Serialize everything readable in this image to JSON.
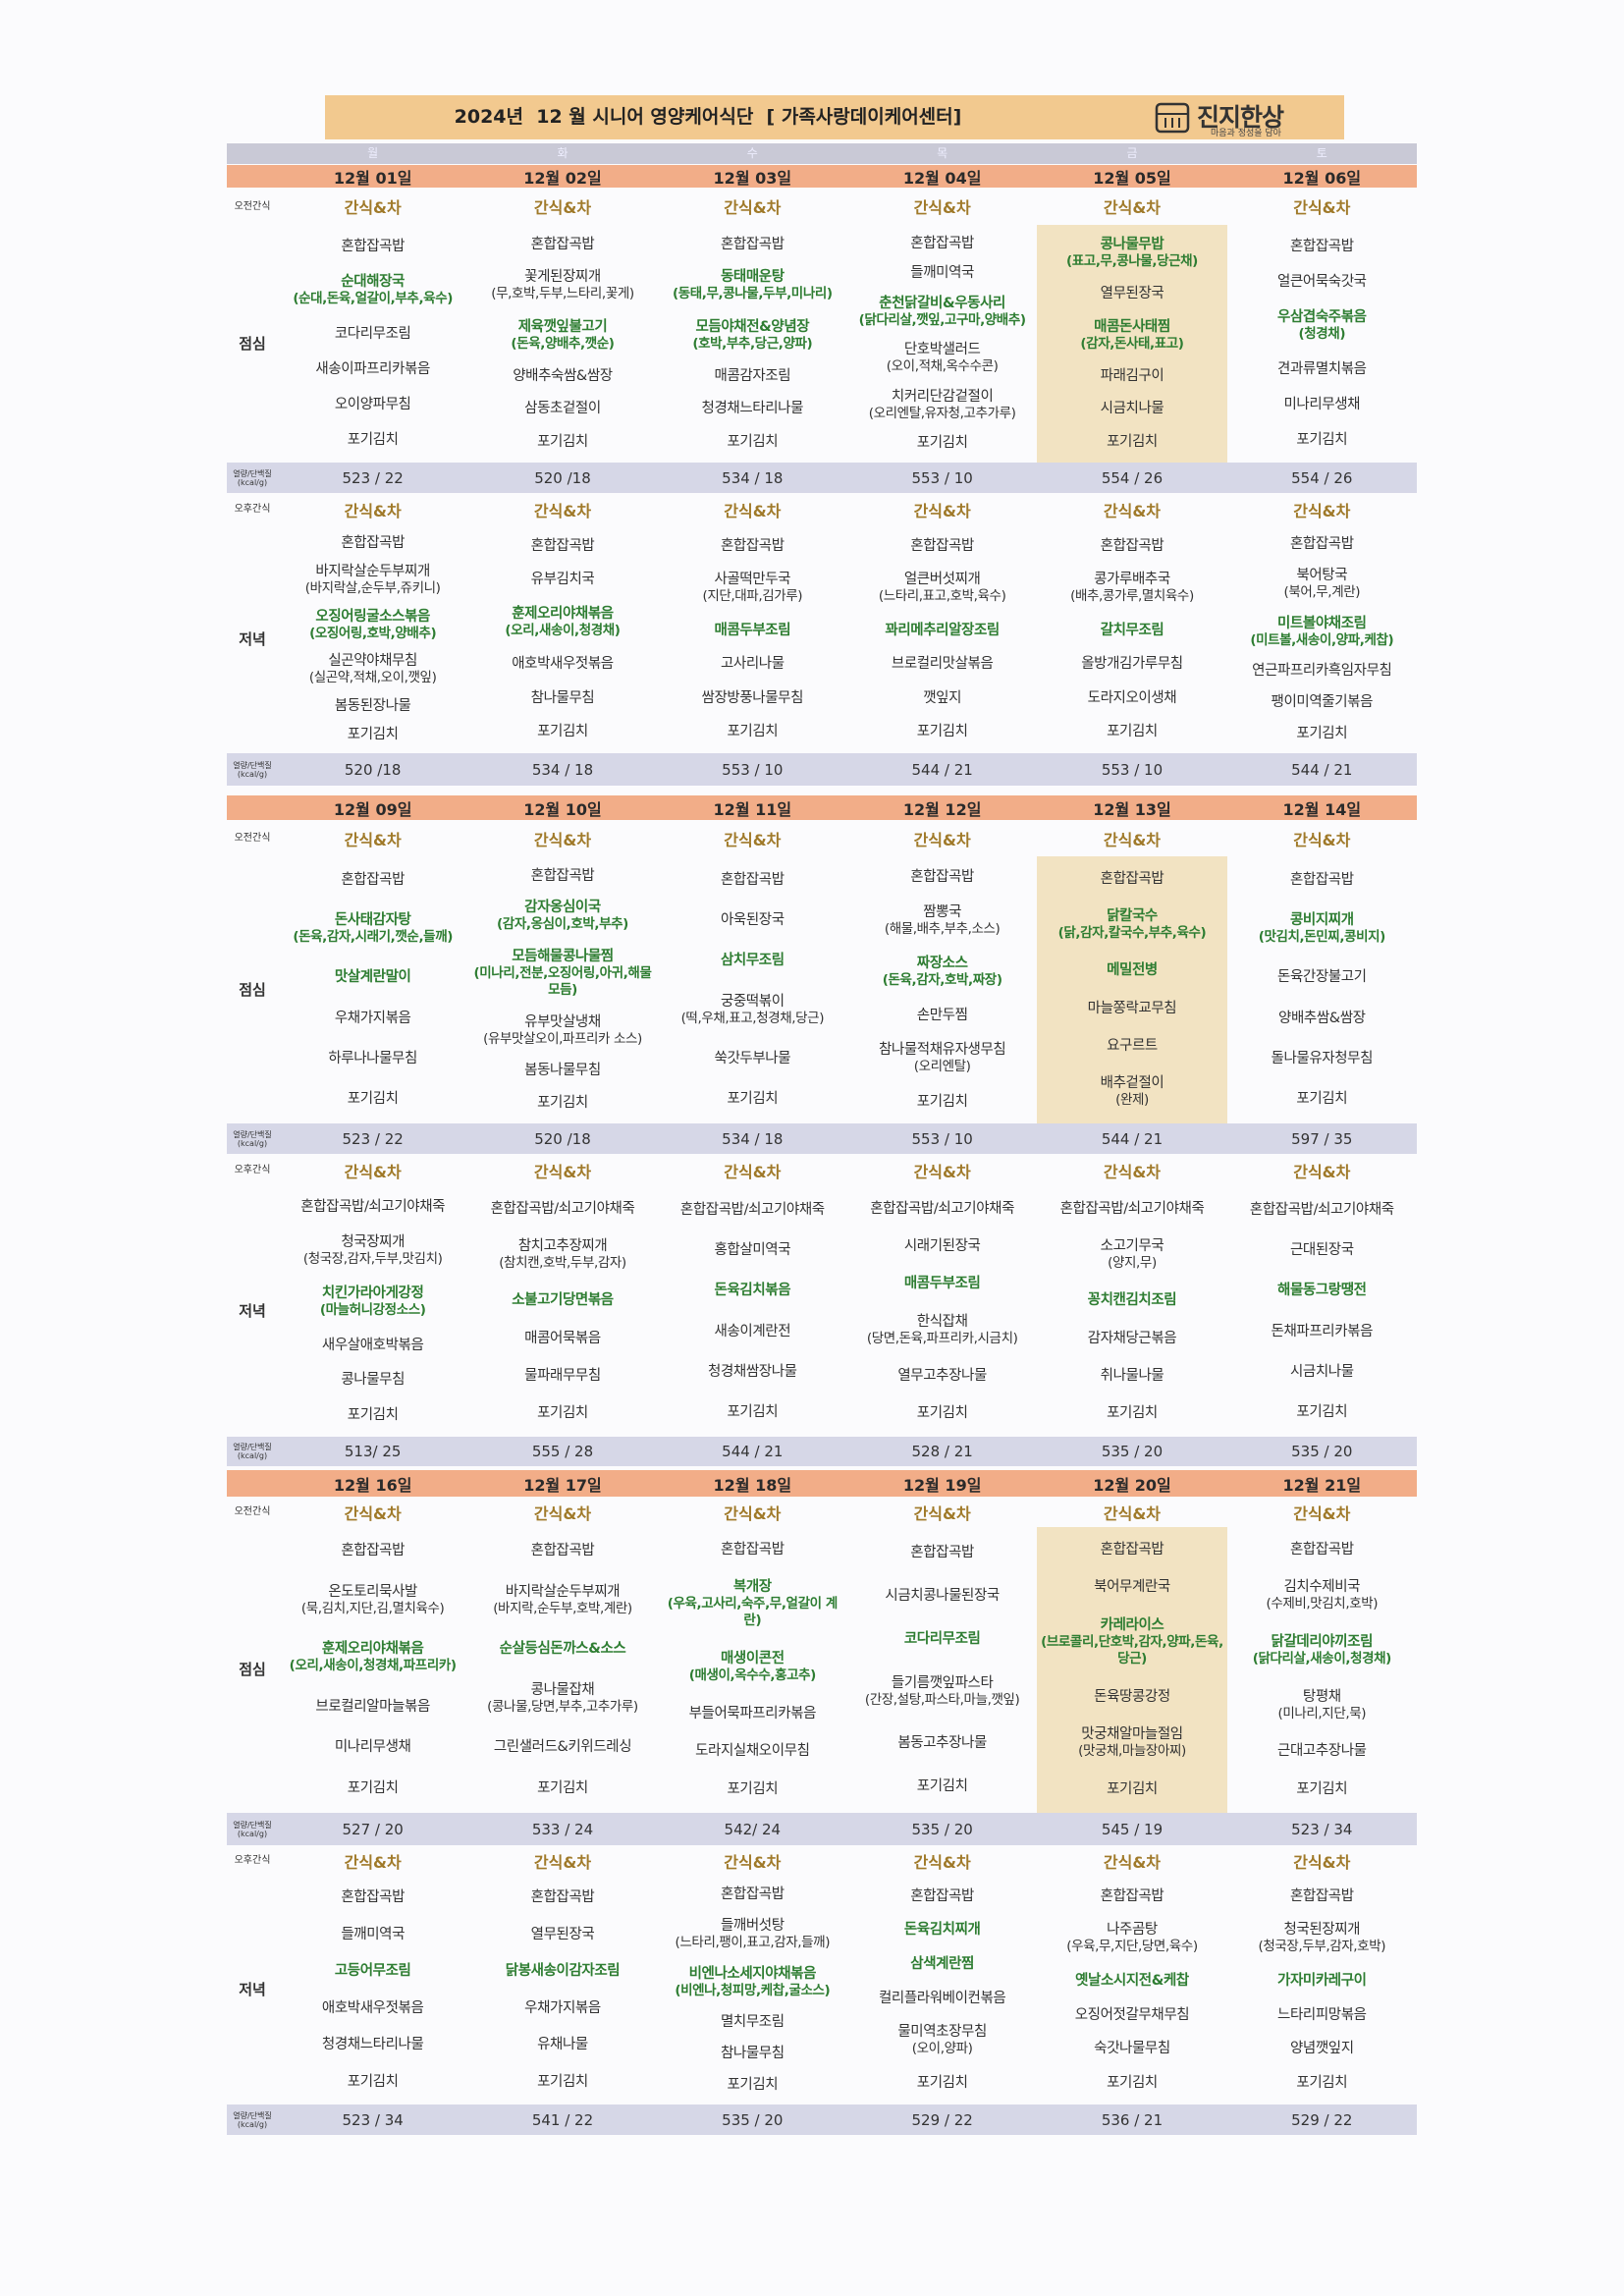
{
  "header": {
    "title": "2024년  12 월 시니어 영양케어식단  [ 가족사랑데이케어센터]",
    "logo": "진지한상",
    "logo_sub": "마음과 정성을 담아"
  },
  "weekdays": [
    "월",
    "화",
    "수",
    "목",
    "금",
    "토"
  ],
  "row_labels": {
    "morning_snack": "오전간식",
    "lunch": "점심",
    "nutrition": "열량/단백질",
    "nutrition_unit": "(kcal/g)",
    "afternoon_snack": "오후간식",
    "dinner": "저녁"
  },
  "weeks": [
    {
      "dates": [
        "12월 01일",
        "12월 02일",
        "12월 03일",
        "12월 04일",
        "12월 05일",
        "12월 06일"
      ],
      "morning_snack": [
        "간식&차",
        "간식&차",
        "간식&차",
        "간식&차",
        "간식&차",
        "간식&차"
      ],
      "lunch": [
        [
          "혼합잡곡밥",
          {
            "text": "순대해장국(순대,돈육,얼갈이,부추,육수)",
            "color": "#2e7d32"
          },
          "코다리무조림",
          "새송이파프리카볶음",
          "오이양파무침",
          "포기김치"
        ],
        [
          "혼합잡곡밥",
          "꽃게된장찌개(무,호박,두부,느타리,꽃게)",
          {
            "text": "제육깻잎불고기(돈육,양배추,깻순)",
            "color": "#2e7d32"
          },
          "양배추숙쌈&쌈장",
          "삼동초겉절이",
          "포기김치"
        ],
        [
          "혼합잡곡밥",
          {
            "text": "동태매운탕(동태,무,콩나물,두부,미나리)",
            "color": "#2e7d32"
          },
          {
            "text": "모듬야채전&양념장(호박,부추,당근,양파)",
            "color": "#2e7d32"
          },
          "매콤감자조림",
          "청경채느타리나물",
          "포기김치"
        ],
        [
          "혼합잡곡밥",
          "들깨미역국",
          {
            "text": "춘천닭갈비&우동사리(닭다리살,깻잎,고구마,양배추)",
            "color": "#2e7d32"
          },
          "단호박샐러드(오이,적채,옥수수콘)",
          "치커리단감겉절이(오리엔탈,유자청,고추가루)",
          "포기김치"
        ],
        [
          {
            "text": "콩나물무밥(표고,무,콩나물,당근채)",
            "color": "#2e7d32"
          },
          "열무된장국",
          {
            "text": "매콤돈사태찜(감자,돈사태,표고)",
            "color": "#2e7d32"
          },
          "파래김구이",
          "시금치나물",
          "포기김치"
        ],
        [
          "혼합잡곡밥",
          "얼큰어묵숙갓국",
          {
            "text": "우삼겹숙주볶음(청경채)",
            "color": "#2e7d32"
          },
          "견과류멸치볶음",
          "미나리무생채",
          "포기김치"
        ]
      ],
      "lunch_nutrition": [
        "523 / 22",
        "520 /18",
        "534 / 18",
        "553 / 10",
        "554 / 26",
        "554 / 26"
      ],
      "afternoon_snack": [
        "간식&차",
        "간식&차",
        "간식&차",
        "간식&차",
        "간식&차",
        "간식&차"
      ],
      "dinner": [
        [
          "혼합잡곡밥",
          "바지락살순두부찌개(바지락살,순두부,쥬키니)",
          {
            "text": "오징어링굴소스볶음(오징어링,호박,양배추)",
            "color": "#2e7d32"
          },
          "실곤약야채무침(실곤약,적채,오이,깻잎)",
          "봄동된장나물",
          "포기김치"
        ],
        [
          "혼합잡곡밥",
          "유부김치국",
          {
            "text": "훈제오리야채볶음(오리,새송이,청경채)",
            "color": "#2e7d32"
          },
          "애호박새우젓볶음",
          "참나물무침",
          "포기김치"
        ],
        [
          "혼합잡곡밥",
          "사골떡만두국(지단,대파,김가루)",
          {
            "text": "매콤두부조림",
            "color": "#2e7d32"
          },
          "고사리나물",
          "쌈장방풍나물무침",
          "포기김치"
        ],
        [
          "혼합잡곡밥",
          "얼큰버섯찌개(느타리,표고,호박,육수)",
          {
            "text": "꽈리메추리알장조림",
            "color": "#2e7d32"
          },
          "브로컬리맛살볶음",
          "깻잎지",
          "포기김치"
        ],
        [
          "혼합잡곡밥",
          "콩가루배추국(배추,콩가루,멸치육수)",
          {
            "text": "갈치무조림",
            "color": "#2e7d32"
          },
          "올방개김가루무침",
          "도라지오이생채",
          "포기김치"
        ],
        [
          "혼합잡곡밥",
          "북어탕국(북어,무,계란)",
          {
            "text": "미트볼야채조림(미트볼,새송이,양파,케찹)",
            "color": "#2e7d32"
          },
          "연근파프리카흑임자무침",
          "팽이미역줄기볶음",
          "포기김치"
        ]
      ],
      "dinner_nutrition": [
        "520 /18",
        "534 / 18",
        "553 / 10",
        "544 / 21",
        "553 / 10",
        "544 / 21"
      ]
    },
    {
      "dates": [
        "12월 09일",
        "12월 10일",
        "12월 11일",
        "12월 12일",
        "12월 13일",
        "12월 14일"
      ],
      "morning_snack": [
        "간식&차",
        "간식&차",
        "간식&차",
        "간식&차",
        "간식&차",
        "간식&차"
      ],
      "lunch": [
        [
          "혼합잡곡밥",
          {
            "text": "돈사태감자탕(돈육,감자,시래기,깻순,들깨)",
            "color": "#2e7d32"
          },
          {
            "text": "맛살계란말이",
            "color": "#2e7d32"
          },
          "우채가지볶음",
          "하루나나물무침",
          "포기김치"
        ],
        [
          "혼합잡곡밥",
          {
            "text": "감자옹심이국(감자,옹심이,호박,부추)",
            "color": "#2e7d32"
          },
          {
            "text": "모듬해물콩나물찜(미나리,전분,오징어링,아귀,해물모듬)",
            "color": "#2e7d32"
          },
          "유부맛살냉채(유부맛살오이,파프리카 소스)",
          "봄동나물무침",
          "포기김치"
        ],
        [
          "혼합잡곡밥",
          "아욱된장국",
          {
            "text": "삼치무조림",
            "color": "#2e7d32"
          },
          "궁중떡볶이(떡,우채,표고,청경채,당근)",
          "쑥갓두부나물",
          "포기김치"
        ],
        [
          "혼합잡곡밥",
          "짬뽕국(해물,배추,부추,소스)",
          {
            "text": "짜장소스(돈육,감자,호박,짜장)",
            "color": "#2e7d32"
          },
          "손만두찜",
          "참나물적채유자생무침(오리엔탈)",
          "포기김치"
        ],
        [
          "혼합잡곡밥",
          {
            "text": "닭칼국수(닭,감자,칼국수,부추,육수)",
            "color": "#2e7d32"
          },
          {
            "text": "메밀전병",
            "color": "#2e7d32"
          },
          "마늘쫑락교무침",
          "요구르트",
          "배추겉절이(완제)"
        ],
        [
          "혼합잡곡밥",
          {
            "text": "콩비지찌개(맛김치,돈민찌,콩비지)",
            "color": "#2e7d32"
          },
          "돈육간장불고기",
          "양배추쌈&쌈장",
          "돌나물유자청무침",
          "포기김치"
        ]
      ],
      "lunch_nutrition": [
        "523 / 22",
        "520 /18",
        "534 / 18",
        "553 / 10",
        "544 / 21",
        "597 / 35"
      ],
      "afternoon_snack": [
        "간식&차",
        "간식&차",
        "간식&차",
        "간식&차",
        "간식&차",
        "간식&차"
      ],
      "dinner": [
        [
          "혼합잡곡밥/쇠고기야채죽",
          "청국장찌개(청국장,감자,두부,맛김치)",
          {
            "text": "치킨가라아게강정(마늘허니강정소스)",
            "color": "#2e7d32"
          },
          "새우살애호박볶음",
          "콩나물무침",
          "포기김치"
        ],
        [
          "혼합잡곡밥/쇠고기야채죽",
          "참치고추장찌개(참치캔,호박,두부,감자)",
          {
            "text": "소불고기당면볶음",
            "color": "#2e7d32"
          },
          "매콤어묵볶음",
          "물파래무무침",
          "포기김치"
        ],
        [
          "혼합잡곡밥/쇠고기야채죽",
          "홍합살미역국",
          {
            "text": "돈육김치볶음",
            "color": "#2e7d32"
          },
          "새송이계란전",
          "청경채쌈장나물",
          "포기김치"
        ],
        [
          "혼합잡곡밥/쇠고기야채죽",
          "시래기된장국",
          {
            "text": "매콤두부조림",
            "color": "#2e7d32"
          },
          "한식잡채(당면,돈육,파프리카,시금치)",
          "열무고추장나물",
          "포기김치"
        ],
        [
          "혼합잡곡밥/쇠고기야채죽",
          "소고기무국(양지,무)",
          {
            "text": "꽁치캔김치조림",
            "color": "#2e7d32"
          },
          "감자채당근볶음",
          "취나물나물",
          "포기김치"
        ],
        [
          "혼합잡곡밥/쇠고기야채죽",
          "근대된장국",
          {
            "text": "해물동그랑땡전",
            "color": "#2e7d32"
          },
          "돈채파프리카볶음",
          "시금치나물",
          "포기김치"
        ]
      ],
      "dinner_nutrition": [
        "513/ 25",
        "555 / 28",
        "544 / 21",
        "528 / 21",
        "535 / 20",
        "535 / 20"
      ]
    },
    {
      "dates": [
        "12월 16일",
        "12월 17일",
        "12월 18일",
        "12월 19일",
        "12월 20일",
        "12월 21일"
      ],
      "morning_snack": [
        "간식&차",
        "간식&차",
        "간식&차",
        "간식&차",
        "간식&차",
        "간식&차"
      ],
      "lunch": [
        [
          "혼합잡곡밥",
          "온도토리묵사발(묵,김치,지단,김,멸치육수)",
          {
            "text": "훈제오리야채볶음(오리,새송이,청경채,파프리카)",
            "color": "#2e7d32"
          },
          "브로컬리알마늘볶음",
          "미나리무생채",
          "포기김치"
        ],
        [
          "혼합잡곡밥",
          "바지락살순두부찌개(바지락,순두부,호박,계란)",
          {
            "text": "순살등심돈까스&소스",
            "color": "#2e7d32"
          },
          "콩나물잡채(콩나물,당면,부추,고추가루)",
          "그린샐러드&키위드레싱",
          "포기김치"
        ],
        [
          "혼합잡곡밥",
          {
            "text": "복개장(우육,고사리,숙주,무,얼갈이 계란)",
            "color": "#2e7d32"
          },
          {
            "text": "매생이콘전(매생이,옥수수,홍고추)",
            "color": "#2e7d32"
          },
          "부들어묵파프리카볶음",
          "도라지실채오이무침",
          "포기김치"
        ],
        [
          "혼합잡곡밥",
          "시금치콩나물된장국",
          {
            "text": "코다리무조림",
            "color": "#2e7d32"
          },
          "들기름깻잎파스타(간장,설탕,파스타,마늘,깻잎)",
          "봄동고추장나물",
          "포기김치"
        ],
        [
          "혼합잡곡밥",
          "북어무계란국",
          {
            "text": "카레라이스(브로콜리,단호박,감자,양파,돈육,당근)",
            "color": "#2e7d32"
          },
          "돈육땅콩강정",
          "맛궁채알마늘절임(맛궁채,마늘장아찌)",
          "포기김치"
        ],
        [
          "혼합잡곡밥",
          "김치수제비국(수제비,맛김치,호박)",
          {
            "text": "닭갈데리야끼조림(닭다리살,새송이,청경채)",
            "color": "#2e7d32"
          },
          "탕평채(미나리,지단,묵)",
          "근대고추장나물",
          "포기김치"
        ]
      ],
      "lunch_nutrition": [
        "527 / 20",
        "533 / 24",
        "542/ 24",
        "535 / 20",
        "545 / 19",
        "523 / 34"
      ],
      "afternoon_snack": [
        "간식&차",
        "간식&차",
        "간식&차",
        "간식&차",
        "간식&차",
        "간식&차"
      ],
      "dinner": [
        [
          "혼합잡곡밥",
          "들깨미역국",
          {
            "text": "고등어무조림",
            "color": "#2e7d32"
          },
          "애호박새우젓볶음",
          "청경채느타리나물",
          "포기김치"
        ],
        [
          "혼합잡곡밥",
          "열무된장국",
          {
            "text": "닭봉새송이감자조림",
            "color": "#2e7d32"
          },
          "우채가지볶음",
          "유채나물",
          "포기김치"
        ],
        [
          "혼합잡곡밥",
          "들깨버섯탕(느타리,팽이,표고,감자,들깨)",
          {
            "text": "비엔나소세지야채볶음(비엔나,청피망,케찹,굴소스)",
            "color": "#2e7d32"
          },
          "멸치무조림",
          "참나물무침",
          "포기김치"
        ],
        [
          "혼합잡곡밥",
          {
            "text": "돈육김치찌개",
            "color": "#2e7d32"
          },
          {
            "text": "삼색계란찜",
            "color": "#2e7d32"
          },
          "컬리플라워베이컨볶음",
          "물미역초장무침(오이,양파)",
          "포기김치"
        ],
        [
          "혼합잡곡밥",
          "나주곰탕(우육,무,지단,당면,육수)",
          {
            "text": "옛날소시지전&케찹",
            "color": "#2e7d32"
          },
          "오징어젓갈무채무침",
          "숙갓나물무침",
          "포기김치"
        ],
        [
          "혼합잡곡밥",
          "청국된장찌개(청국장,두부,감자,호박)",
          {
            "text": "가자미카레구이",
            "color": "#2e7d32"
          },
          "느타리피망볶음",
          "양념깻잎지",
          "포기김치"
        ]
      ],
      "dinner_nutrition": [
        "523 / 34",
        "541 / 22",
        "535 / 20",
        "529 / 22",
        "536 / 21",
        "529 / 22"
      ]
    }
  ]
}
